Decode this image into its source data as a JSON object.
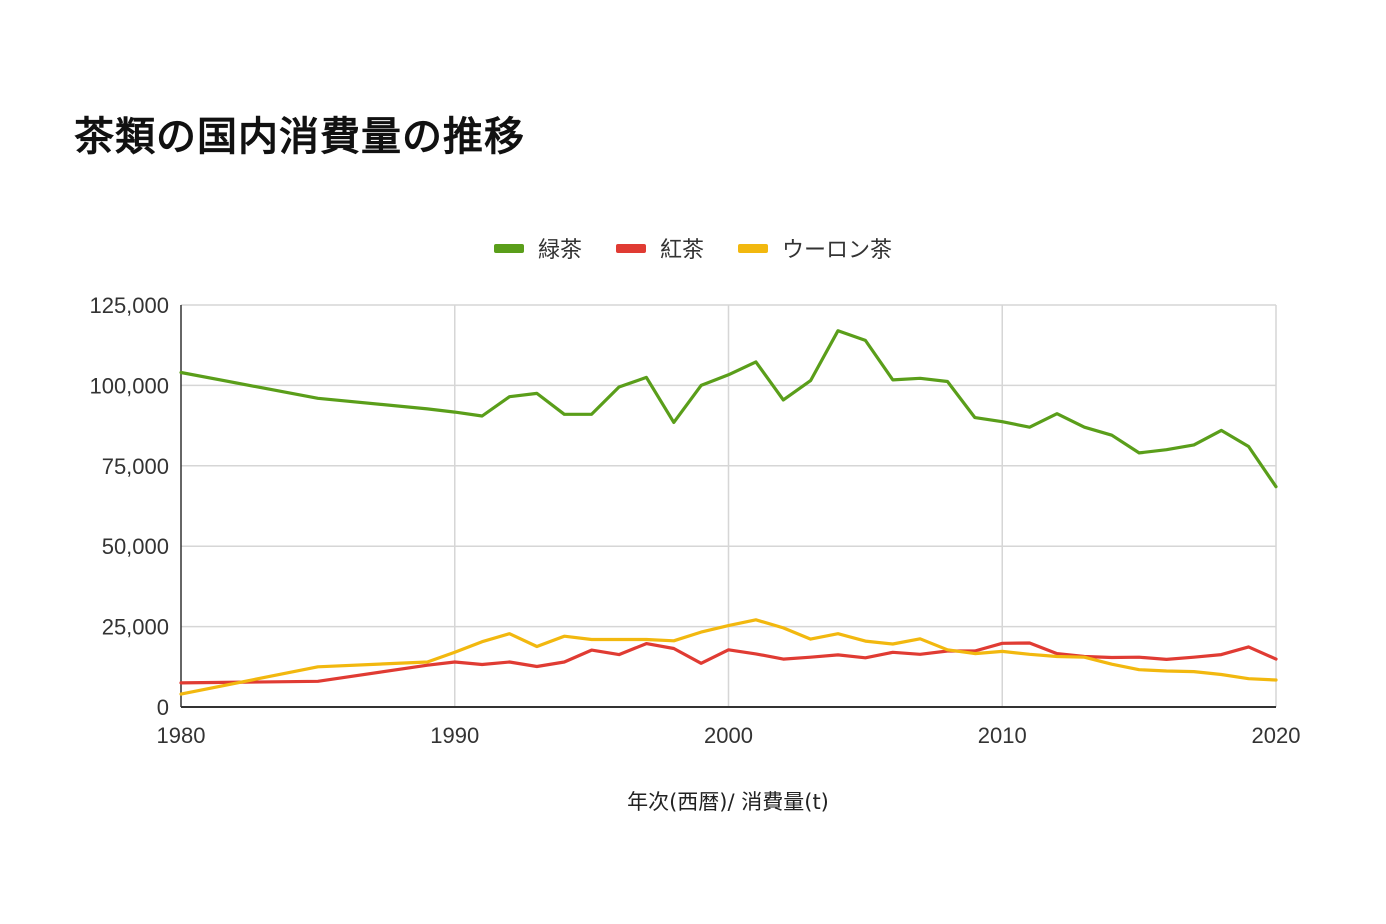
{
  "chart_data": {
    "type": "line",
    "title": "茶類の国内消費量の推移",
    "xlabel": "年次(西暦)/ 消費量(t)",
    "ylabel": "",
    "xlim": [
      1980,
      2020
    ],
    "ylim": [
      0,
      125000
    ],
    "x_ticks": [
      1980,
      1990,
      2000,
      2010,
      2020
    ],
    "y_ticks": [
      0,
      25000,
      50000,
      75000,
      100000,
      125000
    ],
    "y_tick_labels": [
      "0",
      "25,000",
      "50,000",
      "75,000",
      "100,000",
      "125,000"
    ],
    "x_tick_labels": [
      "1980",
      "1990",
      "2000",
      "2010",
      "2020"
    ],
    "grid": true,
    "legend_position": "top",
    "x": [
      1980,
      1985,
      1989,
      1990,
      1991,
      1992,
      1993,
      1994,
      1995,
      1996,
      1997,
      1998,
      1999,
      2000,
      2001,
      2002,
      2003,
      2004,
      2005,
      2006,
      2007,
      2008,
      2009,
      2010,
      2011,
      2012,
      2013,
      2014,
      2015,
      2016,
      2017,
      2018,
      2019,
      2020
    ],
    "series": [
      {
        "name": "緑茶",
        "color": "#5a9e1a",
        "values": [
          104000,
          96000,
          92700,
          91700,
          90500,
          96500,
          97500,
          91000,
          91000,
          99500,
          102500,
          88500,
          100000,
          103300,
          107300,
          95500,
          101500,
          117000,
          114000,
          101700,
          102200,
          101200,
          90000,
          88700,
          87000,
          91200,
          87000,
          84500,
          79000,
          80000,
          81500,
          86000,
          81000,
          68500
        ]
      },
      {
        "name": "紅茶",
        "color": "#e03b33",
        "values": [
          7500,
          8000,
          13000,
          14000,
          13200,
          14000,
          12600,
          14000,
          17700,
          16300,
          19700,
          18200,
          13600,
          17800,
          16500,
          14900,
          15500,
          16200,
          15300,
          17000,
          16400,
          17400,
          17400,
          19800,
          19900,
          16600,
          15700,
          15400,
          15500,
          14800,
          15500,
          16300,
          18700,
          14900
        ]
      },
      {
        "name": "ウーロン茶",
        "color": "#f2b80f",
        "values": [
          4000,
          12500,
          14000,
          17000,
          20300,
          22800,
          18800,
          22000,
          21000,
          21000,
          21000,
          20600,
          23300,
          25300,
          27100,
          24600,
          21100,
          22800,
          20500,
          19600,
          21200,
          17800,
          16600,
          17300,
          16400,
          15700,
          15500,
          13300,
          11600,
          11200,
          11000,
          10100,
          8800,
          8400
        ]
      }
    ]
  }
}
